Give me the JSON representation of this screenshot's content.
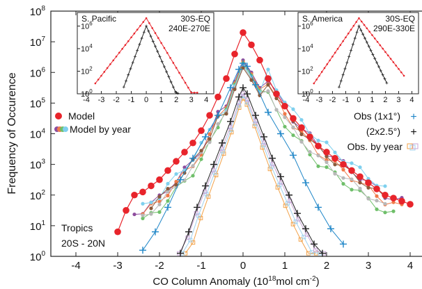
{
  "chart_data": {
    "type": "scatter",
    "xlabel": "CO Column Anomaly (10",
    "xlabel_exp": "18",
    "xlabel_mid": "mol cm",
    "xlabel_exp2": "-2",
    "xlabel_end": ")",
    "ylabel": "Frequency of Occurence",
    "xlim": [
      -4.6,
      4.3
    ],
    "ylim_log10": [
      0,
      8
    ],
    "yscale": "log",
    "x_ticks": [
      "-4",
      "-3",
      "-2",
      "-1",
      "0",
      "1",
      "2",
      "3",
      "4"
    ],
    "y_tick_base": "10",
    "y_tick_exponents": [
      "0",
      "1",
      "2",
      "3",
      "4",
      "5",
      "6",
      "7",
      "8"
    ],
    "annotation_line1": "Tropics",
    "annotation_line2": "20S - 20N",
    "legend": {
      "model": "Model",
      "model_by_year": "Model by year",
      "obs_1x1": "Obs  (1x1°)",
      "obs_2x25": "(2x2.5°)",
      "obs_by_year": "Obs. by year"
    },
    "colors": {
      "model": "#e8242b",
      "obs_1x1": "#1f86c8",
      "obs_2x25": "#222222",
      "year_colors": [
        "#8e4d9e",
        "#f07a4a",
        "#6fbf6a",
        "#7fd0ee",
        "#b8b8b8",
        "#8a5a3c"
      ],
      "obs_year_colors": [
        "#f2a24a",
        "#9fd0ee",
        "#c9a6d6"
      ]
    },
    "series": [
      {
        "name": "Model",
        "x": [
          -3.0,
          -2.8,
          -2.6,
          -2.4,
          -2.2,
          -2.0,
          -1.8,
          -1.6,
          -1.4,
          -1.2,
          -1.0,
          -0.8,
          -0.6,
          -0.4,
          -0.2,
          0.0,
          0.2,
          0.4,
          0.6,
          0.8,
          1.0,
          1.2,
          1.4,
          1.6,
          1.8,
          2.0,
          2.2,
          2.4,
          2.6,
          2.8,
          3.0,
          3.2,
          3.4,
          3.6,
          3.8,
          4.0
        ],
        "y": [
          0.8,
          1.5,
          2.0,
          2.1,
          2.3,
          2.5,
          2.8,
          3.1,
          3.4,
          3.7,
          4.1,
          4.6,
          5.2,
          5.8,
          6.6,
          7.3,
          6.9,
          6.4,
          5.8,
          5.3,
          4.9,
          4.5,
          4.2,
          3.9,
          3.6,
          3.4,
          3.2,
          3.0,
          2.8,
          2.6,
          2.4,
          2.2,
          2.0,
          1.9,
          1.8,
          1.7
        ]
      },
      {
        "name": "Obs  (1x1°)",
        "x": [
          -2.4,
          -2.1,
          -1.8,
          -1.5,
          -1.2,
          -0.9,
          -0.6,
          -0.3,
          -0.1,
          0.0,
          0.1,
          0.3,
          0.6,
          0.9,
          1.2,
          1.5,
          1.8,
          2.1,
          2.4
        ],
        "y": [
          0.2,
          0.8,
          1.6,
          2.5,
          3.2,
          3.9,
          4.6,
          5.5,
          6.1,
          6.3,
          6.2,
          5.6,
          4.7,
          4.0,
          3.3,
          2.4,
          1.6,
          0.9,
          0.4
        ]
      },
      {
        "name": "(2x2.5°)",
        "x": [
          -1.5,
          -1.3,
          -1.1,
          -0.9,
          -0.7,
          -0.5,
          -0.3,
          -0.1,
          0.0,
          0.1,
          0.3,
          0.5,
          0.7,
          0.9,
          1.1,
          1.3,
          1.5,
          1.7,
          1.9
        ],
        "y": [
          0.1,
          0.8,
          1.6,
          2.3,
          3.0,
          3.7,
          4.4,
          5.2,
          5.5,
          5.3,
          4.6,
          3.9,
          3.2,
          2.6,
          2.0,
          1.4,
          0.9,
          0.4,
          0.1
        ]
      }
    ],
    "insets": [
      {
        "region": "S. Pacific",
        "range_line1": "30S-EQ",
        "range_line2": "240E-270E",
        "x_ticks": [
          "-4",
          "-3",
          "-2",
          "-1",
          "0",
          "1",
          "2",
          "3",
          "4"
        ],
        "y_exponents": [
          "0",
          "2",
          "4",
          "6"
        ]
      },
      {
        "region": "S. America",
        "range_line1": "30S-EQ",
        "range_line2": "290E-330E",
        "x_ticks": [
          "-4",
          "-3",
          "-2",
          "-1",
          "0",
          "1",
          "2",
          "3",
          "4"
        ],
        "y_exponents": [
          "0",
          "2",
          "4",
          "6"
        ]
      }
    ]
  }
}
